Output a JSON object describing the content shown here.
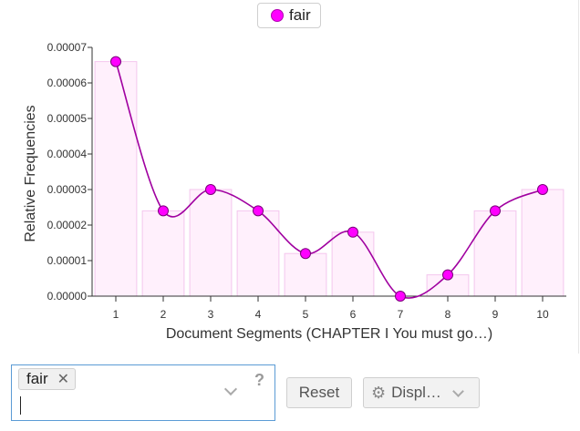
{
  "legend": {
    "label": "fair",
    "color": "#ff00ff"
  },
  "chart_data": {
    "type": "line",
    "xlabel": "Document Segments (CHAPTER I You must go…)",
    "ylabel": "Relative Frequencies",
    "categories": [
      "1",
      "2",
      "3",
      "4",
      "5",
      "6",
      "7",
      "8",
      "9",
      "10"
    ],
    "series": [
      {
        "name": "fair",
        "values": [
          6.6e-05,
          2.4e-05,
          3e-05,
          2.4e-05,
          1.2e-05,
          1.8e-05,
          0.0,
          6e-06,
          2.4e-05,
          3e-05
        ]
      }
    ],
    "ylim": [
      0,
      7e-05
    ],
    "yticks": [
      "0.00000",
      "0.00001",
      "0.00002",
      "0.00003",
      "0.00004",
      "0.00005",
      "0.00006",
      "0.00007"
    ],
    "bars_shown": true,
    "line_color": "#a000a0",
    "marker_color": "#ff00ff",
    "grid": false,
    "legend_position": "top-center"
  },
  "controls": {
    "selected_tag": "fair",
    "tag_remove": "✕",
    "help": "?",
    "reset_label": "Reset",
    "display_label": "Displ…"
  }
}
